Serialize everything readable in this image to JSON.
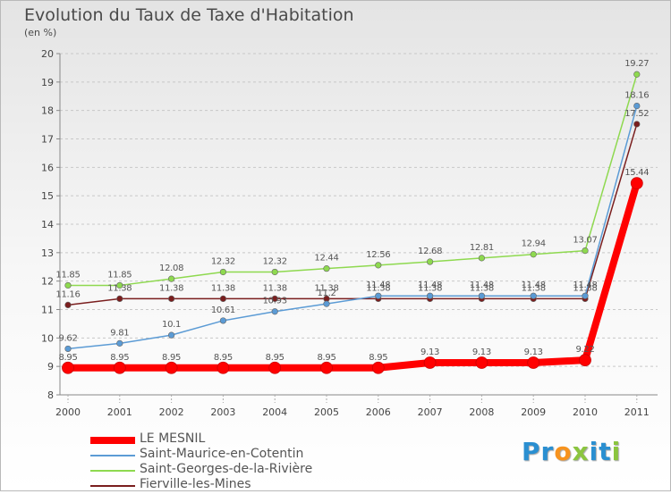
{
  "title": "Evolution du Taux de Taxe d'Habitation",
  "unit": "(en %)",
  "logo": {
    "letters": [
      "P",
      "r",
      "o",
      "x",
      "i",
      "t",
      "i"
    ],
    "colors": [
      "#2a8fd1",
      "#2a8fd1",
      "#f7931e",
      "#8bc53f",
      "#2a8fd1",
      "#2a8fd1",
      "#8bc53f"
    ]
  },
  "chart_data": {
    "type": "line",
    "x": [
      "2000",
      "2001",
      "2002",
      "2003",
      "2004",
      "2005",
      "2006",
      "2007",
      "2008",
      "2009",
      "2010",
      "2011"
    ],
    "ylim": [
      8,
      20
    ],
    "yticks": [
      "8",
      "9",
      "10",
      "11",
      "12",
      "13",
      "14",
      "15",
      "16",
      "17",
      "18",
      "19",
      "20"
    ],
    "grid": "horizontal dashed",
    "legend_position": "bottom-left",
    "series": [
      {
        "name": "LE MESNIL",
        "color": "#ff0000",
        "values": [
          8.95,
          8.95,
          8.95,
          8.95,
          8.95,
          8.95,
          8.95,
          9.13,
          9.13,
          9.13,
          9.22,
          15.44
        ],
        "labels": [
          "8.95",
          "8.95",
          "8.95",
          "8.95",
          "8.95",
          "8.95",
          "8.95",
          "9.13",
          "9.13",
          "9.13",
          "9.22",
          "15.44"
        ]
      },
      {
        "name": "Saint-Maurice-en-Cotentin",
        "color": "#5b9bd5",
        "values": [
          9.62,
          9.81,
          10.1,
          10.61,
          10.93,
          11.2,
          11.48,
          11.48,
          11.48,
          11.48,
          11.48,
          18.16
        ],
        "labels": [
          "9.62",
          "9.81",
          "10.1",
          "10.61",
          "10.93",
          "11.2",
          "11.48",
          "11.48",
          "11.48",
          "11.48",
          "11.48",
          "18.16"
        ]
      },
      {
        "name": "Saint-Georges-de-la-Rivière",
        "color": "#8ed94f",
        "values": [
          11.85,
          11.85,
          12.08,
          12.32,
          12.32,
          12.44,
          12.56,
          12.68,
          12.81,
          12.94,
          13.07,
          19.27
        ],
        "labels": [
          "11.85",
          "11.85",
          "12.08",
          "12.32",
          "12.32",
          "12.44",
          "12.56",
          "12.68",
          "12.81",
          "12.94",
          "13.07",
          "19.27"
        ]
      },
      {
        "name": "Fierville-les-Mines",
        "color": "#7a1e1e",
        "values": [
          11.16,
          11.38,
          11.38,
          11.38,
          11.38,
          11.38,
          11.38,
          11.38,
          11.38,
          11.38,
          11.38,
          17.52
        ],
        "labels": [
          "11.16",
          "11.38",
          "11.38",
          "11.38",
          "11.38",
          "11.38",
          "11.38",
          "11.38",
          "11.38",
          "11.38",
          "11.38",
          "17.52"
        ]
      }
    ]
  }
}
